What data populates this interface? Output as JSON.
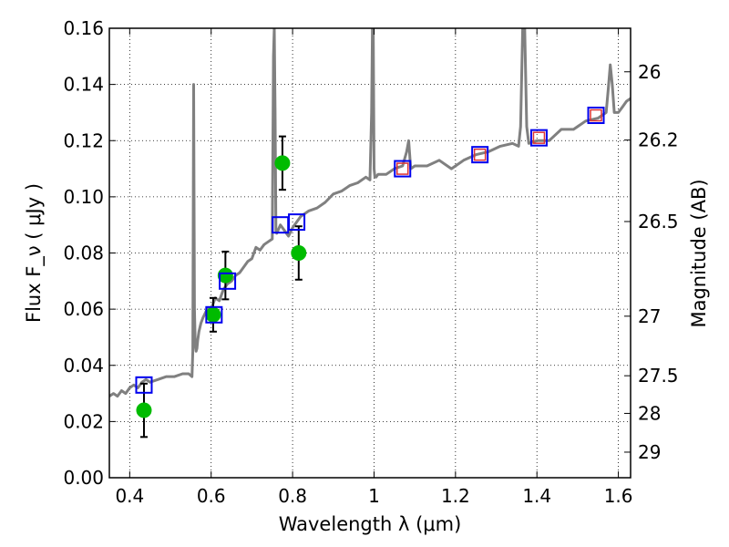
{
  "chart_data": {
    "type": "scatter",
    "xlabel": "Wavelength  λ (μm)",
    "ylabel": "Flux  F_ν  ( μJy )",
    "y2label": "Magnitude (AB)",
    "xlim": [
      0.35,
      1.63
    ],
    "ylim": [
      0.0,
      0.16
    ],
    "x_ticks": [
      0.4,
      0.6,
      0.8,
      1.0,
      1.2,
      1.4,
      1.6
    ],
    "x_tick_labels": [
      "0.4",
      "0.6",
      "0.8",
      "1",
      "1.2",
      "1.4",
      "1.6"
    ],
    "y_ticks": [
      0.0,
      0.02,
      0.04,
      0.06,
      0.08,
      0.1,
      0.12,
      0.14,
      0.16
    ],
    "y_tick_labels": [
      "0.00",
      "0.02",
      "0.04",
      "0.06",
      "0.08",
      "0.10",
      "0.12",
      "0.14",
      "0.16"
    ],
    "mag_ticks": [
      {
        "label": "26",
        "flux": 0.1445
      },
      {
        "label": "26.2",
        "flux": 0.1202
      },
      {
        "label": "26.5",
        "flux": 0.0912
      },
      {
        "label": "27",
        "flux": 0.0575
      },
      {
        "label": "27.5",
        "flux": 0.0363
      },
      {
        "label": "28",
        "flux": 0.0229
      },
      {
        "label": "29",
        "flux": 0.0091
      }
    ],
    "grid": true,
    "observed_points": {
      "color": "#00bb00",
      "x": [
        0.435,
        0.605,
        0.635,
        0.775,
        0.815
      ],
      "y": [
        0.024,
        0.058,
        0.072,
        0.112,
        0.08
      ],
      "yerr": [
        0.0095,
        0.006,
        0.0085,
        0.0095,
        0.0095
      ]
    },
    "model_bands": {
      "color": "#0000ee",
      "x": [
        0.435,
        0.607,
        0.64,
        0.77,
        0.81,
        1.07,
        1.26,
        1.405,
        1.545
      ],
      "y": [
        0.033,
        0.058,
        0.07,
        0.09,
        0.091,
        0.11,
        0.115,
        0.121,
        0.129
      ]
    },
    "model_bands_inner": {
      "color": "#dd3333",
      "x": [
        1.07,
        1.26,
        1.405,
        1.545
      ],
      "y": [
        0.11,
        0.115,
        0.121,
        0.129
      ]
    },
    "spectrum": {
      "color": "#808080",
      "x": [
        0.35,
        0.36,
        0.37,
        0.38,
        0.39,
        0.4,
        0.41,
        0.42,
        0.43,
        0.44,
        0.45,
        0.47,
        0.49,
        0.51,
        0.53,
        0.545,
        0.553,
        0.555,
        0.557,
        0.559,
        0.561,
        0.563,
        0.565,
        0.567,
        0.57,
        0.575,
        0.58,
        0.59,
        0.6,
        0.61,
        0.62,
        0.63,
        0.64,
        0.65,
        0.66,
        0.67,
        0.68,
        0.69,
        0.7,
        0.71,
        0.72,
        0.73,
        0.74,
        0.75,
        0.753,
        0.755,
        0.757,
        0.759,
        0.761,
        0.764,
        0.77,
        0.78,
        0.79,
        0.8,
        0.82,
        0.84,
        0.86,
        0.88,
        0.9,
        0.92,
        0.94,
        0.96,
        0.98,
        0.99,
        0.994,
        0.996,
        0.998,
        1.0,
        1.002,
        1.005,
        1.01,
        1.03,
        1.05,
        1.07,
        1.08,
        1.085,
        1.09,
        1.1,
        1.13,
        1.16,
        1.19,
        1.22,
        1.25,
        1.28,
        1.31,
        1.34,
        1.355,
        1.36,
        1.365,
        1.37,
        1.375,
        1.38,
        1.4,
        1.43,
        1.46,
        1.49,
        1.52,
        1.55,
        1.57,
        1.575,
        1.58,
        1.585,
        1.59,
        1.6,
        1.61,
        1.62,
        1.63
      ],
      "y": [
        0.029,
        0.03,
        0.029,
        0.031,
        0.03,
        0.032,
        0.033,
        0.032,
        0.034,
        0.035,
        0.034,
        0.035,
        0.036,
        0.036,
        0.037,
        0.037,
        0.036,
        0.045,
        0.14,
        0.06,
        0.047,
        0.045,
        0.046,
        0.049,
        0.052,
        0.055,
        0.057,
        0.06,
        0.06,
        0.064,
        0.063,
        0.067,
        0.069,
        0.07,
        0.072,
        0.073,
        0.075,
        0.077,
        0.078,
        0.082,
        0.081,
        0.083,
        0.084,
        0.085,
        0.15,
        0.16,
        0.13,
        0.088,
        0.087,
        0.088,
        0.09,
        0.088,
        0.086,
        0.089,
        0.093,
        0.095,
        0.096,
        0.098,
        0.101,
        0.102,
        0.104,
        0.105,
        0.107,
        0.106,
        0.13,
        0.16,
        0.16,
        0.11,
        0.107,
        0.107,
        0.108,
        0.108,
        0.11,
        0.111,
        0.116,
        0.12,
        0.11,
        0.111,
        0.111,
        0.113,
        0.11,
        0.113,
        0.115,
        0.116,
        0.118,
        0.119,
        0.118,
        0.125,
        0.16,
        0.16,
        0.125,
        0.119,
        0.12,
        0.12,
        0.124,
        0.124,
        0.127,
        0.128,
        0.13,
        0.138,
        0.147,
        0.14,
        0.13,
        0.13,
        0.132,
        0.134,
        0.135
      ]
    }
  }
}
